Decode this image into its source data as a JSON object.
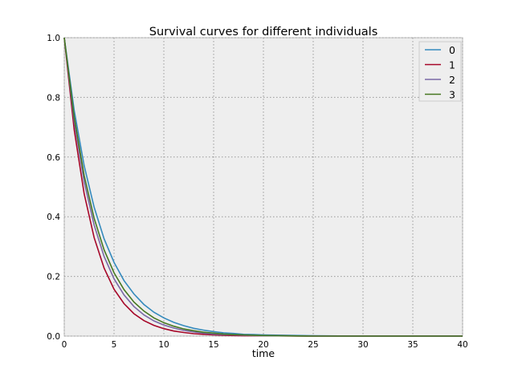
{
  "chart_data": {
    "type": "line",
    "title": "Survival curves for different individuals",
    "xlabel": "time",
    "ylabel": "",
    "xlim": [
      0,
      40
    ],
    "ylim": [
      0,
      1
    ],
    "xticks": [
      "0",
      "5",
      "10",
      "15",
      "20",
      "25",
      "30",
      "35",
      "40"
    ],
    "yticks": [
      "0.0",
      "0.2",
      "0.4",
      "0.6",
      "0.8",
      "1.0"
    ],
    "grid": true,
    "legend_position": "top-right",
    "x": [
      0,
      1,
      2,
      3,
      4,
      5,
      6,
      7,
      8,
      9,
      10,
      11,
      12,
      13,
      14,
      15,
      16,
      17,
      18,
      19,
      20,
      25,
      30,
      35,
      40
    ],
    "series": [
      {
        "name": "0",
        "color": "#348ABD",
        "values": [
          1.0,
          0.756,
          0.571,
          0.432,
          0.326,
          0.247,
          0.186,
          0.141,
          0.106,
          0.08,
          0.061,
          0.046,
          0.035,
          0.026,
          0.02,
          0.015,
          0.011,
          0.009,
          0.006,
          0.005,
          0.004,
          0.001,
          0.0,
          0.0,
          0.0
        ]
      },
      {
        "name": "1",
        "color": "#A60628",
        "values": [
          1.0,
          0.691,
          0.477,
          0.33,
          0.228,
          0.157,
          0.109,
          0.075,
          0.052,
          0.036,
          0.025,
          0.017,
          0.012,
          0.008,
          0.006,
          0.004,
          0.003,
          0.002,
          0.001,
          0.001,
          0.001,
          0.0,
          0.0,
          0.0,
          0.0
        ]
      },
      {
        "name": "2",
        "color": "#7A68A6",
        "values": [
          1.0,
          0.719,
          0.517,
          0.372,
          0.267,
          0.192,
          0.138,
          0.099,
          0.071,
          0.051,
          0.037,
          0.027,
          0.019,
          0.014,
          0.01,
          0.007,
          0.005,
          0.004,
          0.003,
          0.002,
          0.001,
          0.0,
          0.0,
          0.0,
          0.0
        ]
      },
      {
        "name": "3",
        "color": "#467821",
        "values": [
          1.0,
          0.733,
          0.538,
          0.395,
          0.289,
          0.212,
          0.156,
          0.114,
          0.084,
          0.061,
          0.045,
          0.033,
          0.024,
          0.018,
          0.013,
          0.01,
          0.007,
          0.005,
          0.004,
          0.003,
          0.002,
          0.0,
          0.0,
          0.0,
          0.0
        ]
      }
    ]
  }
}
